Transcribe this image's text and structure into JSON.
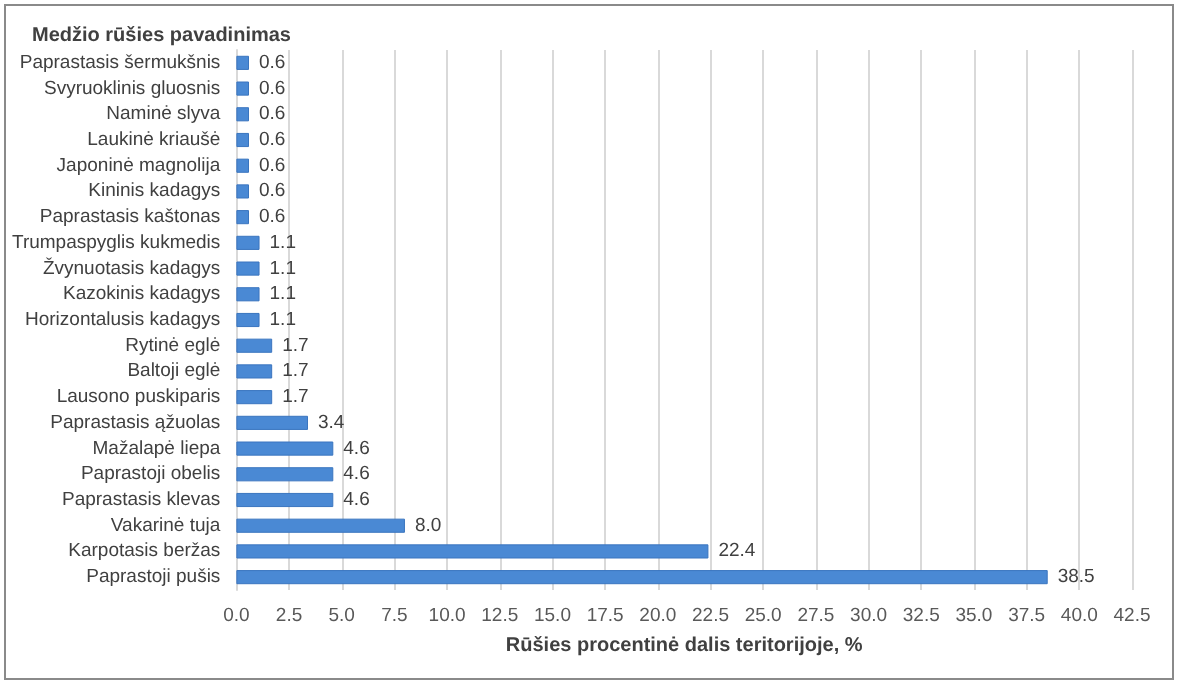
{
  "chart_data": {
    "type": "bar",
    "orientation": "horizontal",
    "ylabel": "Medžio rūšies pavadinimas",
    "xlabel": "Rūšies procentinė dalis teritorijoje, %",
    "categories": [
      "Paprastasis šermukšnis",
      "Svyruoklinis gluosnis",
      "Naminė slyva",
      "Laukinė kriaušė",
      "Japoninė magnolija",
      "Kininis kadagys",
      "Paprastasis kaštonas",
      "Trumpaspyglis kukmedis",
      "Žvynuotasis kadagys",
      "Kazokinis kadagys",
      "Horizontalusis kadagys",
      "Rytinė eglė",
      "Baltoji eglė",
      "Lausono puskiparis",
      "Paprastasis ąžuolas",
      "Mažalapė liepa",
      "Paprastoji obelis",
      "Paprastasis klevas",
      "Vakarinė tuja",
      "Karpotasis beržas",
      "Paprastoji pušis"
    ],
    "values": [
      0.6,
      0.6,
      0.6,
      0.6,
      0.6,
      0.6,
      0.6,
      1.1,
      1.1,
      1.1,
      1.1,
      1.7,
      1.7,
      1.7,
      3.4,
      4.6,
      4.6,
      4.6,
      8.0,
      22.4,
      38.5
    ],
    "value_labels": [
      "0.6",
      "0.6",
      "0.6",
      "0.6",
      "0.6",
      "0.6",
      "0.6",
      "1.1",
      "1.1",
      "1.1",
      "1.1",
      "1.7",
      "1.7",
      "1.7",
      "3.4",
      "4.6",
      "4.6",
      "4.6",
      "8.0",
      "22.4",
      "38.5"
    ],
    "color": "#4a89d4",
    "xlim": [
      0,
      42.5
    ],
    "xticks": [
      {
        "value": 0,
        "label": "0.0"
      },
      2.5,
      {
        "value": 5,
        "label": "5.0"
      },
      7.5,
      {
        "value": 10,
        "label": "10.0"
      },
      12.5,
      {
        "value": 15,
        "label": "15.0"
      },
      17.5,
      {
        "value": 20,
        "label": "20.0"
      },
      22.5,
      {
        "value": 25,
        "label": "25.0"
      },
      27.5,
      {
        "value": 30,
        "label": "30.0"
      },
      32.5,
      {
        "value": 35,
        "label": "35.0"
      },
      37.5,
      {
        "value": 40,
        "label": "40.0"
      },
      42.5
    ],
    "grid": "x"
  }
}
